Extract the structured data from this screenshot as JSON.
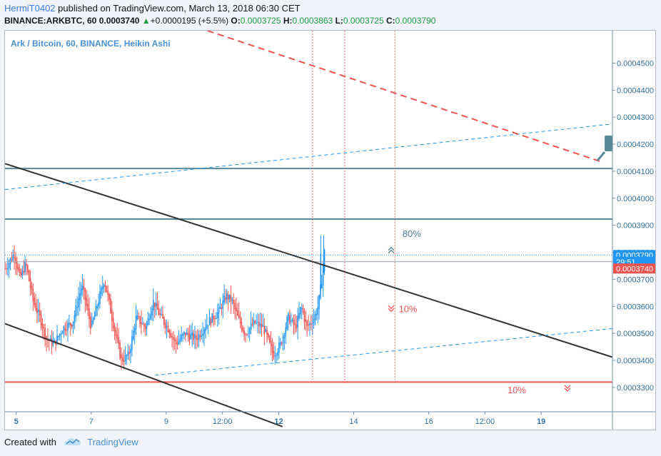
{
  "header": {
    "author": "HermiT0402",
    "published": "published on TradingView.com, March 13, 2018 06:30 CET",
    "symbol": "BINANCE:ARKBTC, 60",
    "last": "0.0003740",
    "arrow": "▲",
    "change": "+0.0000195 (+5.5%)",
    "o_label": "O:",
    "o_value": "0.0003725",
    "h_label": "H:",
    "h_value": "0.0003863",
    "l_label": "L:",
    "l_value": "0.0003725",
    "c_label": "C:",
    "c_value": "0.0003790"
  },
  "footer": {
    "created_with": "Created with",
    "brand": "TradingView"
  },
  "colors": {
    "up": "#2196f3",
    "down": "#ef5350",
    "axis": "#2e6f9e"
  },
  "chart_data": {
    "type": "candlestick",
    "legend": "Ark / Bitcoin, 60, BINANCE, Heikin Ashi",
    "chart_style": "Heikin Ashi",
    "y_range": [
      0.000321,
      0.000462
    ],
    "x_range_days": [
      4.7,
      20.9
    ],
    "y_ticks": [
      "0.0004500",
      "0.0004400",
      "0.0004300",
      "0.0004200",
      "0.0004100",
      "0.0004000",
      "0.0003900",
      "0.0003800",
      "0.0003700",
      "0.0003600",
      "0.0003500",
      "0.0003400",
      "0.0003300"
    ],
    "x_ticks": [
      {
        "t": 5.0,
        "label": "5",
        "bold": true
      },
      {
        "t": 7.0,
        "label": "7",
        "bold": false
      },
      {
        "t": 9.0,
        "label": "9",
        "bold": false
      },
      {
        "t": 10.5,
        "label": "12:00",
        "bold": false
      },
      {
        "t": 12.0,
        "label": "12",
        "bold": true
      },
      {
        "t": 14.0,
        "label": "14",
        "bold": false
      },
      {
        "t": 16.0,
        "label": "16",
        "bold": false
      },
      {
        "t": 17.5,
        "label": "12:00",
        "bold": false
      },
      {
        "t": 19.0,
        "label": "19",
        "bold": true
      }
    ],
    "price_tags": [
      {
        "label": "0.0003790",
        "price": 0.000379,
        "color": "#2196f3"
      },
      {
        "label": "29:51",
        "price": 0.0003765,
        "color": "#2196f3"
      },
      {
        "label": "0.0003740",
        "price": 0.000374,
        "color": "#ef5350"
      }
    ],
    "horizontal_levels": [
      {
        "price": 0.000411,
        "color": "#5a8a99"
      },
      {
        "price": 0.0003923,
        "color": "#5a8a99"
      },
      {
        "price": 0.000332,
        "color": "#ef5350"
      }
    ],
    "trend_lines": [
      {
        "from": [
          4.7,
          0.0004128
        ],
        "to": [
          20.9,
          0.0003412
        ],
        "color": "#333333",
        "style": "solid"
      },
      {
        "from": [
          4.7,
          0.0003536
        ],
        "to": [
          12.1,
          0.0003155
        ],
        "color": "#333333",
        "style": "solid"
      },
      {
        "from": [
          4.7,
          0.0004032
        ],
        "to": [
          20.9,
          0.0004275
        ],
        "color": "#2196f3",
        "style": "dashed"
      },
      {
        "from": [
          8.7,
          0.0003345
        ],
        "to": [
          20.9,
          0.0003518
        ],
        "color": "#2196f3",
        "style": "dashed"
      },
      {
        "from": [
          10.1,
          0.000462
        ],
        "to": [
          20.6,
          0.0004135
        ],
        "color": "#ef5350",
        "style": "dashed"
      }
    ],
    "vertical_markers": [
      {
        "t": 12.9,
        "from": 0.000462,
        "to": 0.0003328
      },
      {
        "t": 13.76,
        "from": 0.000462,
        "to": 0.000331
      },
      {
        "t": 15.1,
        "from": 0.000462,
        "to": 0.0003328
      }
    ],
    "annotations": [
      {
        "text": "80%",
        "t": 15.3,
        "price": 0.0003857,
        "color": "#4f7f90"
      },
      {
        "text": "10%",
        "t": 15.2,
        "price": 0.0003578,
        "color": "#ef5350"
      },
      {
        "text": "10%",
        "t": 18.1,
        "price": 0.0003278,
        "color": "#ef5350"
      }
    ],
    "arrows": [
      {
        "t": 15.0,
        "price": 0.0003805,
        "dir": "up",
        "color": "#4f7f90"
      },
      {
        "t": 15.0,
        "price": 0.0003595,
        "dir": "down",
        "color": "#ef5350"
      },
      {
        "t": 19.7,
        "price": 0.00033,
        "dir": "down",
        "color": "#ef5350"
      }
    ],
    "candle_path": [
      [
        4.7,
        0.000374
      ],
      [
        4.95,
        0.0003795
      ],
      [
        5.1,
        0.00037
      ],
      [
        5.25,
        0.000376
      ],
      [
        5.45,
        0.000362
      ],
      [
        5.65,
        0.000355
      ],
      [
        5.8,
        0.000348
      ],
      [
        6.0,
        0.000346
      ],
      [
        6.25,
        0.000352
      ],
      [
        6.5,
        0.000354
      ],
      [
        6.75,
        0.000368
      ],
      [
        7.0,
        0.000352
      ],
      [
        7.15,
        0.00036
      ],
      [
        7.35,
        0.00037
      ],
      [
        7.55,
        0.000356
      ],
      [
        7.8,
        0.00034
      ],
      [
        8.0,
        0.000342
      ],
      [
        8.2,
        0.000356
      ],
      [
        8.45,
        0.000352
      ],
      [
        8.65,
        0.000362
      ],
      [
        8.85,
        0.000356
      ],
      [
        9.05,
        0.000352
      ],
      [
        9.25,
        0.000346
      ],
      [
        9.5,
        0.00035
      ],
      [
        9.8,
        0.000348
      ],
      [
        10.1,
        0.000354
      ],
      [
        10.4,
        0.000358
      ],
      [
        10.6,
        0.000364
      ],
      [
        10.75,
        0.000362
      ],
      [
        10.9,
        0.000356
      ],
      [
        11.1,
        0.00035
      ],
      [
        11.35,
        0.000354
      ],
      [
        11.6,
        0.000352
      ],
      [
        11.85,
        0.000342
      ],
      [
        12.05,
        0.000346
      ],
      [
        12.25,
        0.000356
      ],
      [
        12.45,
        0.000352
      ],
      [
        12.6,
        0.00036
      ],
      [
        12.75,
        0.000352
      ],
      [
        12.95,
        0.000356
      ],
      [
        13.05,
        0.00036
      ],
      [
        13.15,
        0.00037
      ],
      [
        13.22,
        0.00038
      ]
    ],
    "candle_count": 240
  }
}
